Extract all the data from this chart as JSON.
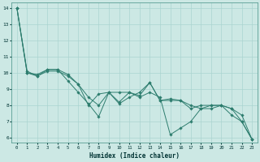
{
  "xlabel": "Humidex (Indice chaleur)",
  "ylabel": "",
  "background_color": "#cce8e4",
  "grid_color": "#aad4d0",
  "line_color": "#2d7d6e",
  "xlim": [
    -0.5,
    23.5
  ],
  "ylim": [
    5.7,
    14.3
  ],
  "yticks": [
    6,
    7,
    8,
    9,
    10,
    11,
    12,
    13,
    14
  ],
  "xticks": [
    0,
    1,
    2,
    3,
    4,
    5,
    6,
    7,
    8,
    9,
    10,
    11,
    12,
    13,
    14,
    15,
    16,
    17,
    18,
    19,
    20,
    21,
    22,
    23
  ],
  "lines": [
    [
      14.0,
      10.0,
      9.8,
      10.2,
      10.2,
      9.9,
      9.3,
      8.0,
      8.7,
      8.8,
      8.1,
      8.5,
      8.8,
      9.4,
      8.3,
      8.3,
      8.3,
      8.0,
      7.8,
      8.0,
      8.0,
      7.4,
      7.0,
      5.9
    ],
    [
      14.0,
      10.1,
      9.8,
      10.1,
      10.1,
      9.8,
      9.3,
      8.5,
      8.0,
      8.8,
      8.8,
      8.8,
      8.5,
      8.8,
      8.5,
      6.2,
      6.6,
      7.0,
      7.8,
      7.8,
      8.0,
      7.8,
      7.0,
      5.9
    ],
    [
      14.0,
      10.0,
      9.9,
      10.2,
      10.2,
      9.5,
      8.8,
      8.1,
      7.3,
      8.8,
      8.2,
      8.8,
      8.6,
      9.4,
      8.3,
      8.4,
      8.3,
      7.8,
      8.0,
      8.0,
      8.0,
      7.8,
      7.4,
      5.9
    ]
  ],
  "figsize": [
    3.2,
    2.0
  ],
  "dpi": 100
}
